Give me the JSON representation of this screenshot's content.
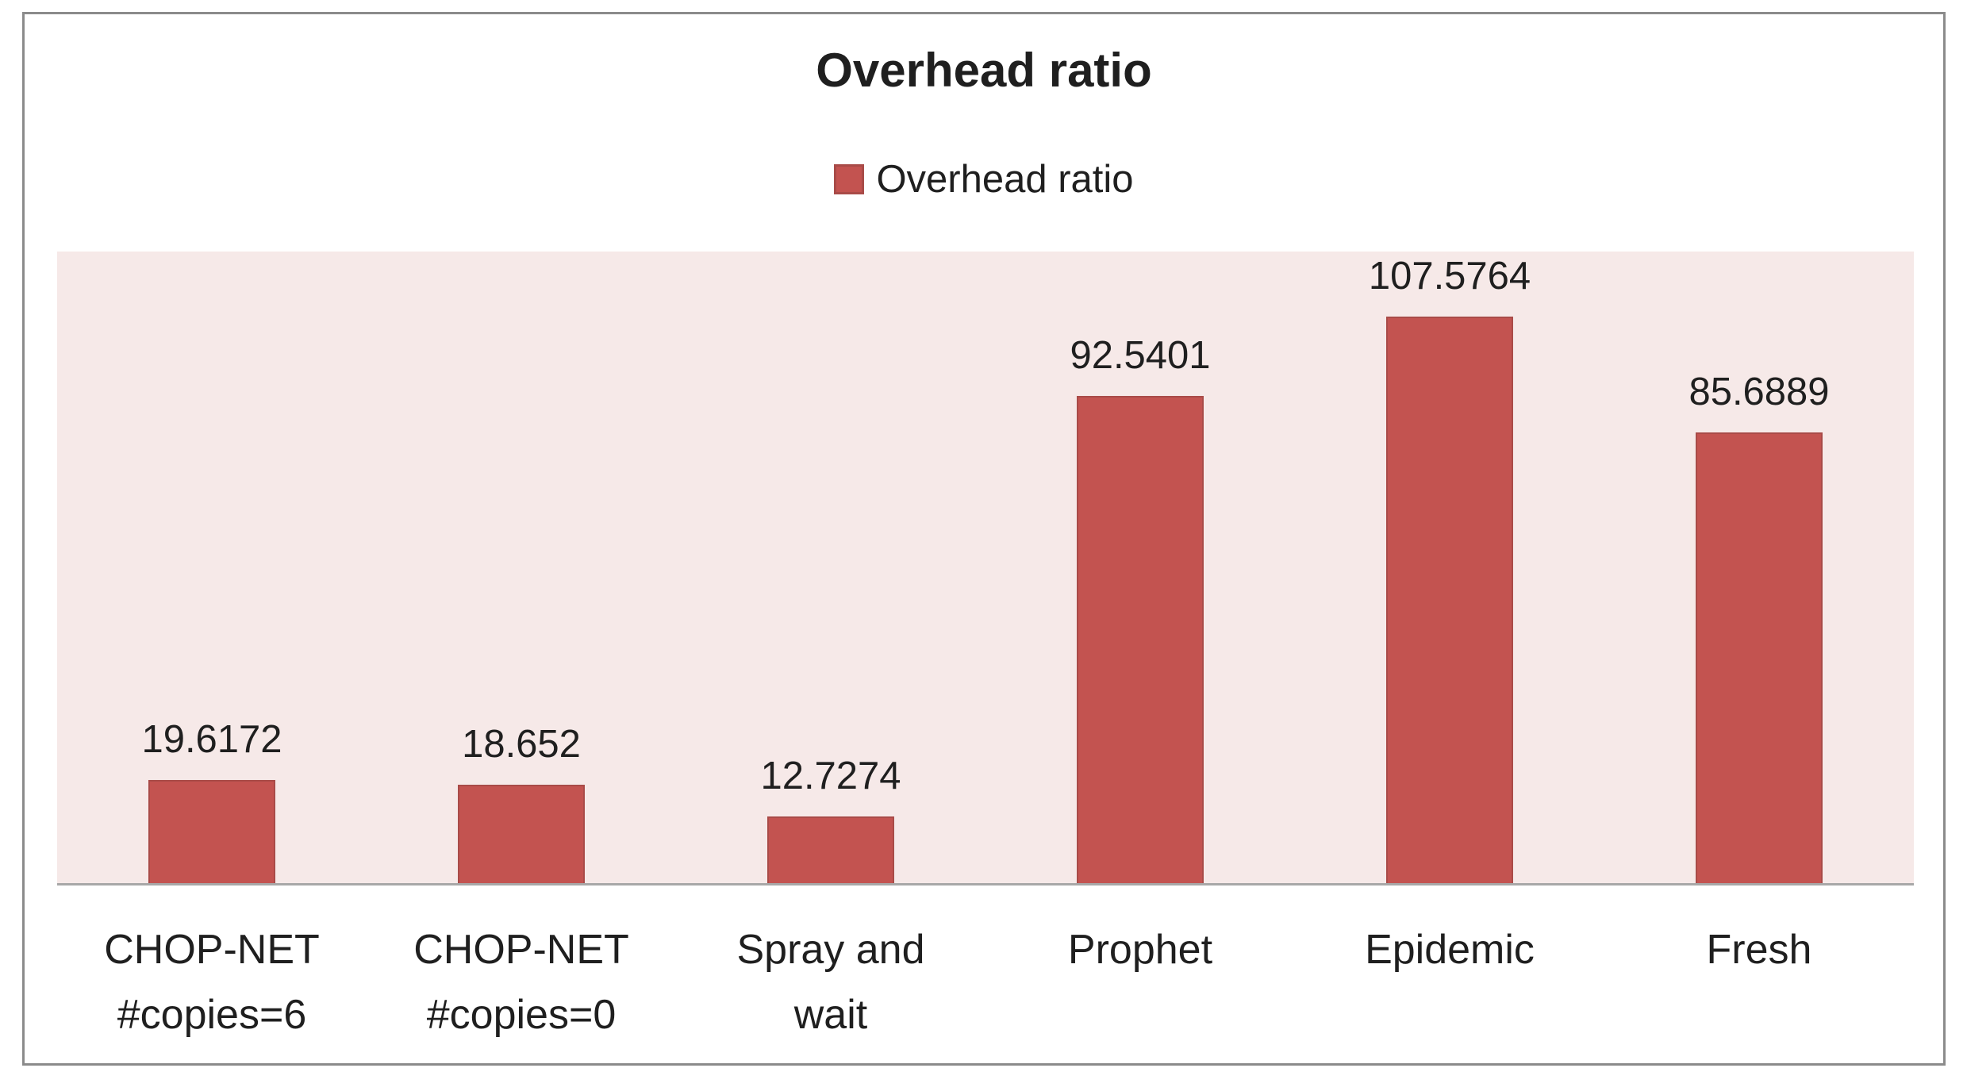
{
  "chart": {
    "title": "Overhead ratio",
    "legend_label": "Overhead ratio"
  },
  "colors": {
    "bar_fill": "#c35350",
    "bar_border": "#a94b48",
    "plot_bg": "#f6e9e8",
    "frame_border": "#8b8b8b",
    "axis_line": "#a8a8a8",
    "text": "#1f1f1f"
  },
  "chart_data": {
    "type": "bar",
    "title": "Overhead ratio",
    "categories": [
      "CHOP-NET #copies=6",
      "CHOP-NET #copies=0",
      "Spray and wait",
      "Prophet",
      "Epidemic",
      "Fresh"
    ],
    "category_lines": [
      [
        "CHOP-NET",
        "#copies=6"
      ],
      [
        "CHOP-NET",
        "#copies=0"
      ],
      [
        "Spray and",
        "wait"
      ],
      [
        "Prophet"
      ],
      [
        "Epidemic"
      ],
      [
        "Fresh"
      ]
    ],
    "series": [
      {
        "name": "Overhead ratio",
        "values": [
          19.6172,
          18.652,
          12.7274,
          92.5401,
          107.5764,
          85.6889
        ]
      }
    ],
    "value_labels": [
      "19.6172",
      "18.652",
      "12.7274",
      "92.5401",
      "107.5764",
      "85.6889"
    ],
    "xlabel": "",
    "ylabel": "",
    "ylim": [
      0,
      120
    ],
    "grid": false,
    "y_axis_visible": false,
    "legend_position": "top-center",
    "data_labels": "above-bars"
  }
}
